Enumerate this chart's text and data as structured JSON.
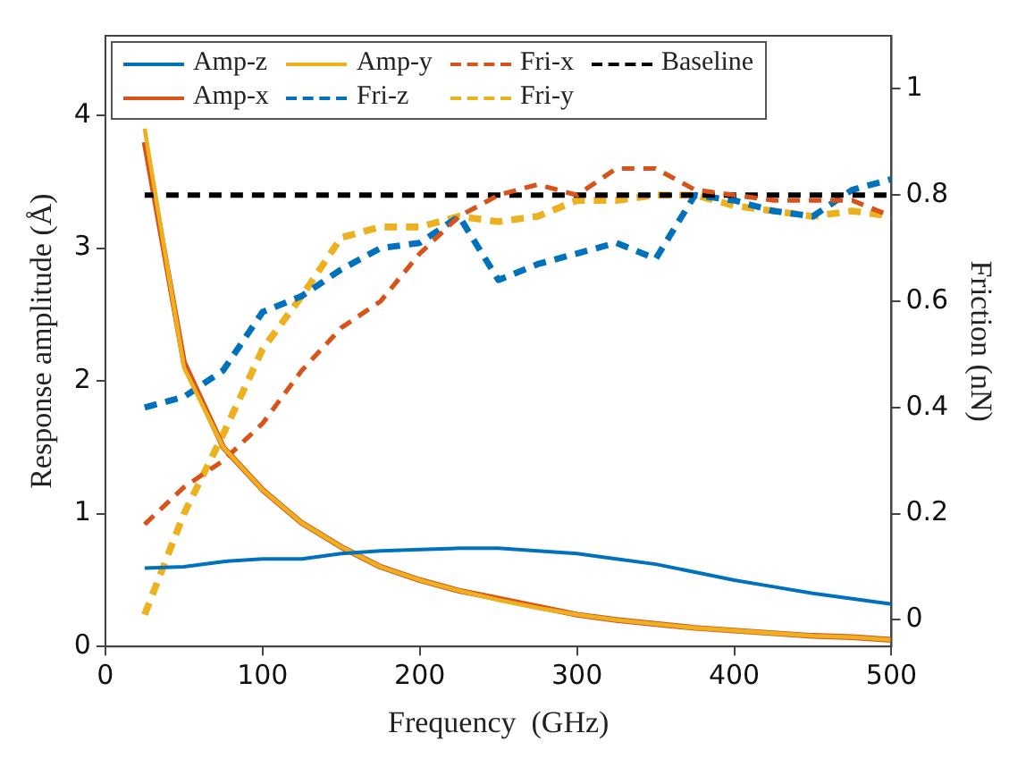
{
  "chart_data": {
    "type": "line",
    "xlabel": "Frequency  (GHz)",
    "ylabel": "Response amplitude (Å)",
    "y2label": "Friction (nN)",
    "x": [
      25,
      50,
      75,
      100,
      125,
      150,
      175,
      200,
      225,
      250,
      275,
      300,
      325,
      350,
      375,
      400,
      425,
      450,
      475,
      500
    ],
    "xlim": [
      0,
      500
    ],
    "xticks": [
      0,
      100,
      200,
      300,
      400,
      500
    ],
    "ylim": [
      0,
      4.6
    ],
    "yticks": [
      0,
      1,
      2,
      3,
      4
    ],
    "y2lim": [
      -0.05,
      1.1
    ],
    "y2ticks": [
      0,
      0.2,
      0.4,
      0.6,
      0.8,
      1
    ],
    "grid": false,
    "legend": "top left",
    "marker": "none",
    "series": [
      {
        "name": "Amp-z",
        "color": "#0072bd",
        "line_style": "solid",
        "values": [
          0.59,
          0.6,
          0.64,
          0.66,
          0.66,
          0.7,
          0.72,
          0.73,
          0.74,
          0.74,
          0.72,
          0.7,
          0.66,
          0.62,
          0.56,
          0.5,
          0.45,
          0.4,
          0.36,
          0.32
        ]
      },
      {
        "name": "Amp-y",
        "color": "#edb120",
        "line_style": "solid",
        "values": [
          3.9,
          2.1,
          1.5,
          1.18,
          0.93,
          0.75,
          0.6,
          0.5,
          0.42,
          0.35,
          0.29,
          0.24,
          0.2,
          0.17,
          0.14,
          0.12,
          0.1,
          0.08,
          0.07,
          0.05
        ]
      },
      {
        "name": "Fri-x",
        "color": "#d95319",
        "line_style": "dashed",
        "axis": "y2",
        "values": [
          0.18,
          0.25,
          0.3,
          0.37,
          0.47,
          0.55,
          0.6,
          0.69,
          0.76,
          0.8,
          0.82,
          0.8,
          0.85,
          0.85,
          0.81,
          0.8,
          0.79,
          0.79,
          0.79,
          0.76
        ]
      },
      {
        "name": "Baseline",
        "color": "#000000",
        "line_style": "dashed",
        "axis": "y2",
        "x": [
          25,
          500
        ],
        "values": [
          0.8,
          0.8
        ]
      },
      {
        "name": "Amp-x",
        "color": "#d95319",
        "line_style": "solid",
        "values": [
          3.8,
          2.14,
          1.5,
          1.18,
          0.93,
          0.75,
          0.6,
          0.5,
          0.42,
          0.36,
          0.3,
          0.24,
          0.2,
          0.17,
          0.14,
          0.12,
          0.1,
          0.08,
          0.07,
          0.05
        ]
      },
      {
        "name": "Fri-z",
        "color": "#0072bd",
        "line_style": "dashed",
        "axis": "y2",
        "values": [
          0.4,
          0.42,
          0.47,
          0.58,
          0.61,
          0.66,
          0.7,
          0.71,
          0.76,
          0.64,
          0.67,
          0.69,
          0.71,
          0.68,
          0.8,
          0.79,
          0.77,
          0.76,
          0.81,
          0.83
        ]
      },
      {
        "name": "Fri-y",
        "color": "#edb120",
        "line_style": "dashed",
        "axis": "y2",
        "values": [
          0.01,
          0.2,
          0.35,
          0.51,
          0.61,
          0.72,
          0.74,
          0.74,
          0.76,
          0.75,
          0.76,
          0.79,
          0.79,
          0.8,
          0.8,
          0.78,
          0.77,
          0.76,
          0.77,
          0.76
        ]
      }
    ]
  }
}
